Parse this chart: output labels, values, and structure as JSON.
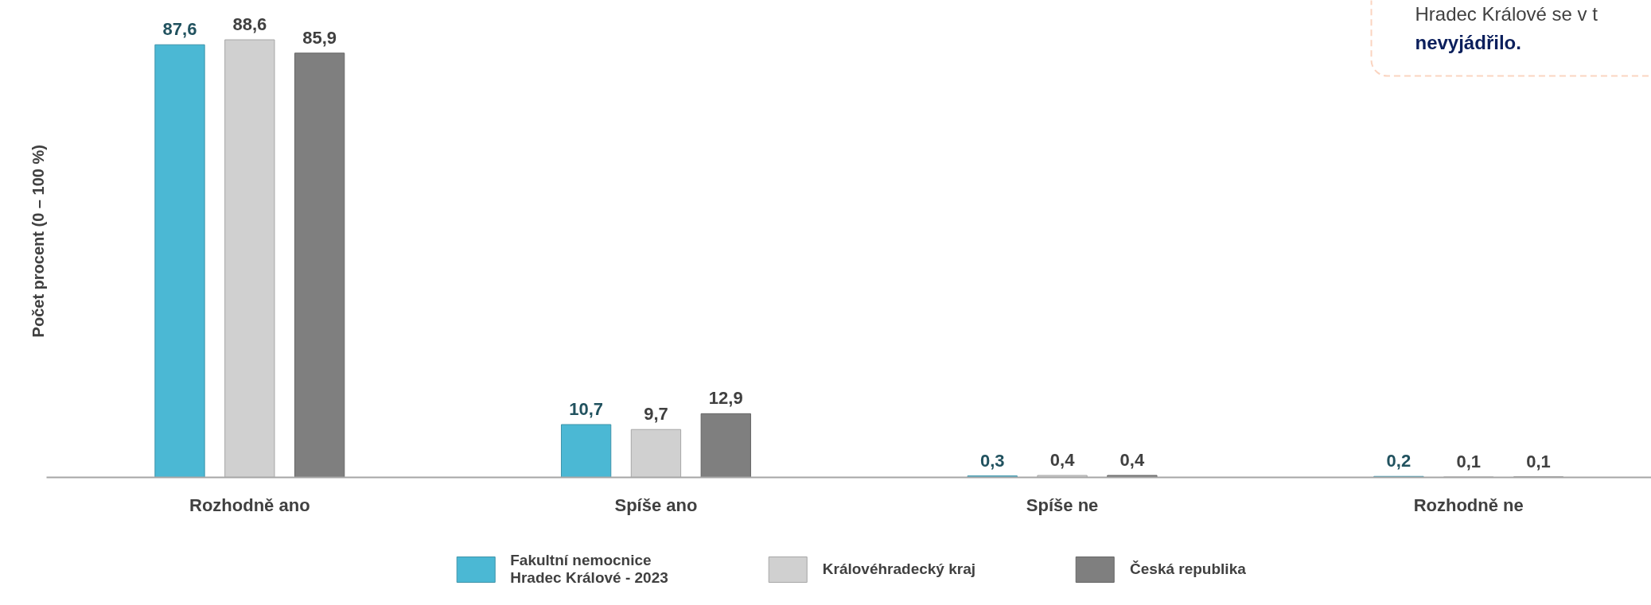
{
  "chart_data": {
    "type": "bar",
    "ylabel": "Počet procent  (0 – 100 %)",
    "categories": [
      "Rozhodně ano",
      "Spíše ano",
      "Spíše ne",
      "Rozhodně ne"
    ],
    "series": [
      {
        "name": "Fakultní nemocnice\nHradec Králové - 2023",
        "color": "#4bb8d4",
        "values": [
          87.6,
          10.7,
          0.3,
          0.2
        ],
        "value_labels": [
          "87,6",
          "10,7",
          "0,3",
          "0,2"
        ]
      },
      {
        "name": "Královéhradecký kraj",
        "color": "#d0d0d0",
        "values": [
          88.6,
          9.7,
          0.4,
          0.1
        ],
        "value_labels": [
          "88,6",
          "9,7",
          "0,4",
          "0,1"
        ]
      },
      {
        "name": "Česká republika",
        "color": "#7f7f7f",
        "values": [
          85.9,
          12.9,
          0.4,
          0.1
        ],
        "value_labels": [
          "85,9",
          "12,9",
          "0,4",
          "0,1"
        ]
      }
    ],
    "legend": "bottom",
    "grid": false,
    "annotations": [
      "Hradec Králové se v t",
      "nevyjádřilo."
    ]
  }
}
